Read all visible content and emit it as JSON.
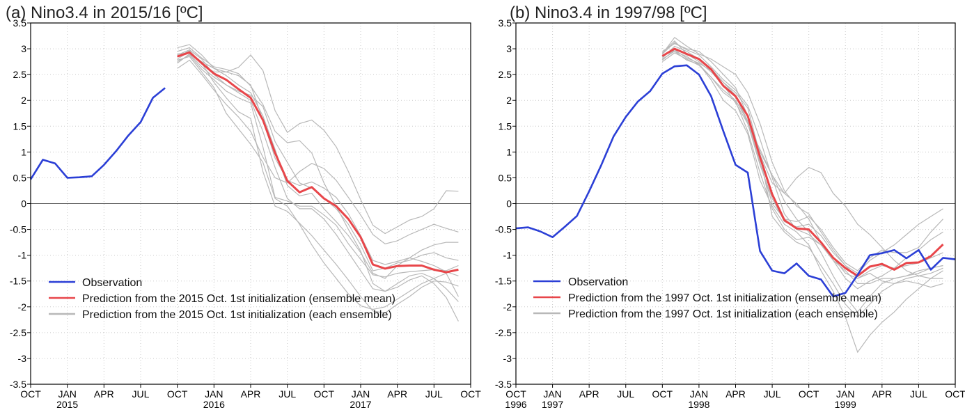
{
  "chart_data": [
    {
      "type": "line",
      "title": "(a) Nino3.4 in 2015/16 [ºC]",
      "xlim": [
        "2014-10",
        "2017-10"
      ],
      "ylim": [
        -3.5,
        3.5
      ],
      "yticks": [
        "3.5",
        "3",
        "2.5",
        "2",
        "1.5",
        "1",
        "0.5",
        "0",
        "-0.5",
        "-1",
        "-1.5",
        "-2",
        "-2.5",
        "-3",
        "-3.5"
      ],
      "xticks": [
        {
          "x": "2014-10",
          "label": "OCT",
          "year": ""
        },
        {
          "x": "2015-01",
          "label": "JAN",
          "year": "2015"
        },
        {
          "x": "2015-04",
          "label": "APR",
          "year": ""
        },
        {
          "x": "2015-07",
          "label": "JUL",
          "year": ""
        },
        {
          "x": "2015-10",
          "label": "OCT",
          "year": ""
        },
        {
          "x": "2016-01",
          "label": "JAN",
          "year": "2016"
        },
        {
          "x": "2016-04",
          "label": "APR",
          "year": ""
        },
        {
          "x": "2016-07",
          "label": "JUL",
          "year": ""
        },
        {
          "x": "2016-10",
          "label": "OCT",
          "year": ""
        },
        {
          "x": "2017-01",
          "label": "JAN",
          "year": "2017"
        },
        {
          "x": "2017-04",
          "label": "APR",
          "year": ""
        },
        {
          "x": "2017-07",
          "label": "JUL",
          "year": ""
        },
        {
          "x": "2017-10",
          "label": "OCT",
          "year": ""
        }
      ],
      "legend": {
        "position": "lower-left",
        "entries": [
          {
            "label": "Observation",
            "color": "#2b3fd6"
          },
          {
            "label": "Prediction from the 2015 Oct. 1st initialization (ensemble mean)",
            "color": "#e8464a"
          },
          {
            "label": "Prediction from the 2015 Oct. 1st initialization (each ensemble)",
            "color": "#b8b8b8"
          }
        ]
      },
      "series": [
        {
          "role": "observation",
          "color": "#2b3fd6",
          "x": [
            "2014-10",
            "2014-11",
            "2014-12",
            "2015-01",
            "2015-02",
            "2015-03",
            "2015-04",
            "2015-05",
            "2015-06",
            "2015-07",
            "2015-08",
            "2015-09"
          ],
          "values": [
            0.47,
            0.85,
            0.78,
            0.5,
            0.51,
            0.53,
            0.75,
            1.02,
            1.32,
            1.58,
            2.05,
            2.24
          ]
        },
        {
          "role": "ensemble-mean",
          "color": "#e8464a",
          "x": [
            "2015-10",
            "2015-11",
            "2015-12",
            "2016-01",
            "2016-02",
            "2016-03",
            "2016-04",
            "2016-05",
            "2016-06",
            "2016-07",
            "2016-08",
            "2016-09",
            "2016-10",
            "2016-11",
            "2016-12",
            "2017-01",
            "2017-02",
            "2017-03",
            "2017-04",
            "2017-05",
            "2017-06",
            "2017-07",
            "2017-08",
            "2017-09"
          ],
          "values": [
            2.85,
            2.93,
            2.72,
            2.52,
            2.4,
            2.22,
            2.05,
            1.62,
            0.98,
            0.44,
            0.22,
            0.32,
            0.1,
            -0.05,
            -0.3,
            -0.65,
            -1.18,
            -1.26,
            -1.21,
            -1.2,
            -1.2,
            -1.28,
            -1.33,
            -1.28
          ]
        },
        {
          "role": "ensemble-members",
          "color": "#b8b8b8",
          "start": "2015-10",
          "members": [
            [
              2.95,
              3.02,
              2.82,
              2.65,
              2.6,
              2.52,
              2.28,
              1.92,
              1.4,
              1.18,
              1.22,
              0.98,
              0.4,
              -0.05,
              -0.5,
              -0.92,
              -1.55,
              -1.7,
              -1.62,
              -1.48,
              -1.4,
              -1.55,
              -1.82,
              -2.28
            ],
            [
              2.8,
              2.95,
              2.7,
              2.55,
              2.55,
              2.64,
              2.88,
              2.58,
              1.8,
              1.38,
              1.55,
              1.62,
              1.42,
              1.1,
              0.62,
              0.08,
              -0.42,
              -0.58,
              -0.45,
              -0.32,
              -0.25,
              -0.1,
              0.25,
              0.24
            ],
            [
              2.62,
              2.78,
              2.5,
              2.2,
              1.92,
              1.68,
              1.4,
              0.9,
              0.5,
              0.4,
              0.62,
              0.78,
              0.68,
              0.45,
              0.12,
              -0.22,
              -0.6,
              -0.78,
              -0.72,
              -0.6,
              -0.5,
              -0.4,
              -0.48,
              -0.55
            ],
            [
              3.02,
              3.08,
              2.88,
              2.62,
              2.55,
              2.48,
              2.3,
              1.62,
              0.88,
              0.45,
              0.35,
              0.42,
              0.3,
              0.12,
              -0.2,
              -0.62,
              -1.1,
              -1.18,
              -1.12,
              -1.05,
              -1.12,
              -1.2,
              -1.32,
              -1.4
            ],
            [
              2.75,
              2.88,
              2.6,
              2.4,
              2.18,
              2.05,
              1.95,
              1.1,
              0.12,
              0.05,
              -0.05,
              -0.05,
              -0.22,
              -0.42,
              -0.78,
              -1.08,
              -1.38,
              -1.42,
              -1.35,
              -1.32,
              -1.3,
              -1.28,
              -1.3,
              -1.2
            ],
            [
              2.85,
              2.96,
              2.72,
              2.35,
              2.05,
              1.78,
              1.65,
              0.62,
              -0.05,
              -0.15,
              -0.38,
              -0.62,
              -0.9,
              -1.18,
              -1.48,
              -1.8,
              -2.08,
              -2.12,
              -1.95,
              -1.8,
              -1.62,
              -1.5,
              -1.52,
              -1.6
            ],
            [
              2.88,
              2.98,
              2.8,
              2.5,
              2.3,
              2.18,
              2.1,
              1.88,
              1.2,
              0.8,
              0.4,
              0.3,
              0.1,
              -0.1,
              -0.4,
              -0.8,
              -1.3,
              -1.25,
              -1.15,
              -1.1,
              -1.0,
              -0.95,
              -1.05,
              -1.1
            ],
            [
              2.78,
              2.85,
              2.55,
              2.25,
              1.75,
              1.45,
              1.15,
              0.8,
              0.1,
              -0.05,
              -0.4,
              -0.8,
              -1.15,
              -1.45,
              -1.75,
              -1.98,
              -2.05,
              -2.0,
              -1.85,
              -1.7,
              -1.55,
              -1.45,
              -1.35,
              -1.8
            ],
            [
              2.9,
              2.92,
              2.75,
              2.62,
              2.48,
              2.3,
              2.15,
              1.7,
              1.05,
              0.35,
              0.15,
              0.2,
              -0.1,
              -0.35,
              -0.62,
              -0.95,
              -1.35,
              -1.45,
              -1.2,
              -1.05,
              -0.9,
              -0.8,
              -0.75,
              -0.75
            ],
            [
              2.72,
              2.9,
              2.65,
              2.45,
              2.3,
              2.15,
              2.0,
              1.4,
              0.7,
              0.1,
              -0.1,
              -0.1,
              -0.3,
              -0.6,
              -0.95,
              -1.3,
              -1.65,
              -1.7,
              -1.55,
              -1.4,
              -1.35,
              -1.45,
              -1.65,
              -1.9
            ]
          ]
        }
      ]
    },
    {
      "type": "line",
      "title": "(b) Nino3.4 in 1997/98 [ºC]",
      "xlim": [
        "1996-10",
        "1999-10"
      ],
      "ylim": [
        -3.5,
        3.5
      ],
      "yticks": [
        "3.5",
        "3",
        "2.5",
        "2",
        "1.5",
        "1",
        "0.5",
        "0",
        "-0.5",
        "-1",
        "-1.5",
        "-2",
        "-2.5",
        "-3",
        "-3.5"
      ],
      "xticks": [
        {
          "x": "1996-10",
          "label": "OCT",
          "year": "1996"
        },
        {
          "x": "1997-01",
          "label": "JAN",
          "year": "1997"
        },
        {
          "x": "1997-04",
          "label": "APR",
          "year": ""
        },
        {
          "x": "1997-07",
          "label": "JUL",
          "year": ""
        },
        {
          "x": "1997-10",
          "label": "OCT",
          "year": ""
        },
        {
          "x": "1998-01",
          "label": "JAN",
          "year": "1998"
        },
        {
          "x": "1998-04",
          "label": "APR",
          "year": ""
        },
        {
          "x": "1998-07",
          "label": "JUL",
          "year": ""
        },
        {
          "x": "1998-10",
          "label": "OCT",
          "year": ""
        },
        {
          "x": "1999-01",
          "label": "JAN",
          "year": "1999"
        },
        {
          "x": "1999-04",
          "label": "APR",
          "year": ""
        },
        {
          "x": "1999-07",
          "label": "JUL",
          "year": ""
        },
        {
          "x": "1999-10",
          "label": "OCT",
          "year": ""
        }
      ],
      "legend": {
        "position": "lower-center",
        "entries": [
          {
            "label": "Observation",
            "color": "#2b3fd6"
          },
          {
            "label": "Prediction from the 1997 Oct. 1st initialization (ensemble mean)",
            "color": "#e8464a"
          },
          {
            "label": "Prediction from the 1997 Oct. 1st initialization (each ensemble)",
            "color": "#b8b8b8"
          }
        ]
      },
      "series": [
        {
          "role": "observation",
          "color": "#2b3fd6",
          "x": [
            "1996-10",
            "1996-11",
            "1996-12",
            "1997-01",
            "1997-02",
            "1997-03",
            "1997-04",
            "1997-05",
            "1997-06",
            "1997-07",
            "1997-08",
            "1997-09",
            "1997-10",
            "1997-11",
            "1997-12",
            "1998-01",
            "1998-02",
            "1998-03",
            "1998-04",
            "1998-05",
            "1998-06",
            "1998-07",
            "1998-08",
            "1998-09",
            "1998-10",
            "1998-11",
            "1998-12",
            "1999-01",
            "1999-02",
            "1999-03",
            "1999-04",
            "1999-05",
            "1999-06",
            "1999-07",
            "1999-08",
            "1999-09",
            "1999-10"
          ],
          "values": [
            -0.48,
            -0.46,
            -0.54,
            -0.65,
            -0.45,
            -0.24,
            0.24,
            0.75,
            1.3,
            1.68,
            1.98,
            2.18,
            2.52,
            2.66,
            2.68,
            2.5,
            2.08,
            1.4,
            0.75,
            0.6,
            -0.92,
            -1.3,
            -1.35,
            -1.16,
            -1.4,
            -1.47,
            -1.8,
            -1.73,
            -1.38,
            -1.0,
            -0.96,
            -0.9,
            -1.06,
            -0.9,
            -1.28,
            -1.05,
            -1.08
          ]
        },
        {
          "role": "ensemble-mean",
          "color": "#e8464a",
          "x": [
            "1997-10",
            "1997-11",
            "1997-12",
            "1998-01",
            "1998-02",
            "1998-03",
            "1998-04",
            "1998-05",
            "1998-06",
            "1998-07",
            "1998-08",
            "1998-09",
            "1998-10",
            "1998-11",
            "1998-12",
            "1999-01",
            "1999-02",
            "1999-03",
            "1999-04",
            "1999-05",
            "1999-06",
            "1999-07",
            "1999-08",
            "1999-09"
          ],
          "values": [
            2.86,
            3.0,
            2.9,
            2.8,
            2.6,
            2.28,
            2.08,
            1.7,
            0.9,
            0.18,
            -0.32,
            -0.48,
            -0.5,
            -0.75,
            -1.05,
            -1.25,
            -1.4,
            -1.22,
            -1.17,
            -1.28,
            -1.15,
            -1.14,
            -1.02,
            -0.79
          ]
        },
        {
          "role": "ensemble-members",
          "color": "#b8b8b8",
          "start": "1997-10",
          "members": [
            [
              2.95,
              3.1,
              3.0,
              2.95,
              2.75,
              2.5,
              2.25,
              1.7,
              1.0,
              0.55,
              0.2,
              0.0,
              -0.3,
              -0.75,
              -1.1,
              -1.45,
              -1.65,
              -1.5,
              -1.4,
              -1.25,
              -1.05,
              -0.9,
              -0.7,
              -0.55
            ],
            [
              2.9,
              3.22,
              3.05,
              2.9,
              2.8,
              2.65,
              2.5,
              2.15,
              1.55,
              0.8,
              0.25,
              -0.05,
              -0.2,
              -0.55,
              -0.9,
              -1.2,
              -1.35,
              -1.1,
              -0.95,
              -0.8,
              -0.6,
              -0.4,
              -0.25,
              -0.1
            ],
            [
              2.8,
              2.95,
              2.85,
              2.7,
              2.45,
              2.2,
              2.0,
              1.6,
              0.95,
              0.4,
              0.2,
              0.5,
              0.7,
              0.6,
              0.2,
              -0.05,
              -0.4,
              -0.6,
              -0.85,
              -1.1,
              -1.3,
              -1.4,
              -1.45,
              -1.45
            ],
            [
              2.92,
              3.15,
              2.9,
              2.75,
              2.55,
              2.3,
              1.95,
              1.55,
              1.05,
              0.55,
              0.05,
              -0.3,
              -0.55,
              -0.95,
              -1.4,
              -1.8,
              -2.1,
              -1.8,
              -1.55,
              -1.45,
              -1.4,
              -1.3,
              -1.25,
              -1.2
            ],
            [
              2.85,
              3.0,
              2.88,
              2.82,
              2.62,
              2.35,
              2.15,
              1.85,
              0.95,
              -0.25,
              -0.55,
              -0.75,
              -0.85,
              -1.2,
              -1.55,
              -1.95,
              -2.2,
              -1.95,
              -1.7,
              -1.55,
              -1.5,
              -1.55,
              -1.62,
              -1.55
            ],
            [
              2.88,
              2.95,
              2.78,
              2.7,
              2.4,
              2.0,
              1.8,
              1.35,
              0.45,
              -0.05,
              -0.4,
              -0.55,
              -0.8,
              -1.3,
              -1.7,
              -2.2,
              -2.88,
              -2.55,
              -2.3,
              -2.1,
              -1.85,
              -1.65,
              -1.45,
              -1.3
            ],
            [
              2.82,
              3.05,
              2.95,
              2.8,
              2.6,
              2.3,
              2.1,
              1.55,
              0.75,
              0.1,
              -0.35,
              -0.45,
              -0.4,
              -0.62,
              -0.95,
              -1.2,
              -1.45,
              -1.3,
              -1.2,
              -1.25,
              -1.2,
              -1.15,
              -1.05,
              -0.95
            ],
            [
              2.9,
              3.12,
              2.98,
              2.88,
              2.65,
              2.4,
              2.2,
              1.9,
              1.25,
              0.5,
              -0.2,
              -0.5,
              -0.6,
              -0.8,
              -1.1,
              -1.3,
              -1.55,
              -1.55,
              -1.45,
              -1.45,
              -1.4,
              -1.35,
              -1.25,
              -1.2
            ],
            [
              2.75,
              2.92,
              2.8,
              2.68,
              2.45,
              2.15,
              1.98,
              1.4,
              0.6,
              -0.1,
              -0.5,
              -0.7,
              -0.65,
              -0.8,
              -1.05,
              -1.35,
              -1.45,
              -1.35,
              -1.5,
              -1.55,
              -1.45,
              -1.4,
              -1.35,
              -1.25
            ],
            [
              2.78,
              2.98,
              2.82,
              2.72,
              2.58,
              2.35,
              2.1,
              1.6,
              0.8,
              0.0,
              -0.3,
              -0.35,
              -0.25,
              -0.5,
              -0.85,
              -1.15,
              -1.3,
              -1.05,
              -0.9,
              -0.95,
              -0.95,
              -0.85,
              -0.55,
              -0.3
            ]
          ]
        }
      ]
    }
  ]
}
